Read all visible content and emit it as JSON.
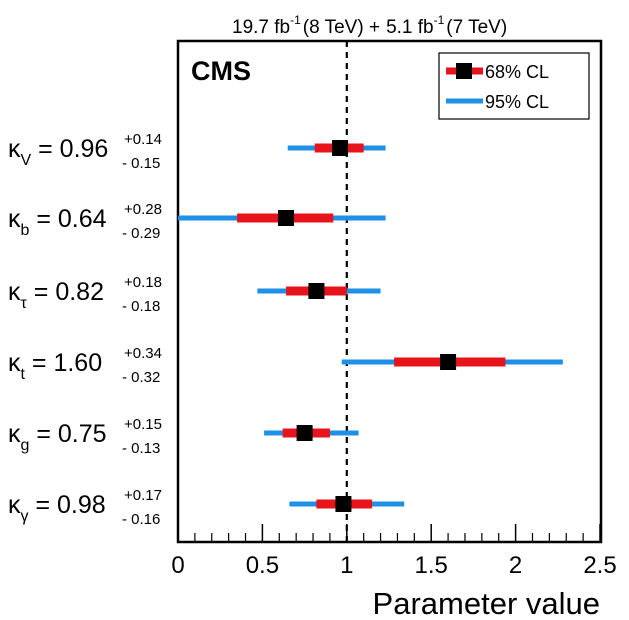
{
  "chart_data": {
    "type": "scatter",
    "header": {
      "lumi1": "19.7 fb",
      "lumi1_exp": "-1",
      "energy1": "(8 TeV) +",
      "lumi2": "5.1 fb",
      "lumi2_exp": "-1",
      "energy2": "(7 TeV)"
    },
    "experiment": "CMS",
    "xlabel": "Parameter value",
    "xlim": [
      0,
      2.5
    ],
    "x_ticks": [
      "0",
      "0.5",
      "1",
      "1.5",
      "2",
      "2.5"
    ],
    "reference_line": 1,
    "legend": {
      "placement": "top-right",
      "items": [
        {
          "label": "68% CL",
          "color": "#e8141b"
        },
        {
          "label": "95% CL",
          "color": "#1e90e6"
        }
      ]
    },
    "colors": {
      "cl68": "#e8141b",
      "cl95": "#1e90e6",
      "marker": "#000000"
    },
    "parameters": [
      {
        "sym": "κ",
        "sub": "V",
        "eq": " = 0.96",
        "up": "+0.14",
        "down": "- 0.15",
        "value": 0.96,
        "cl68": [
          0.81,
          1.1
        ],
        "cl95": [
          0.65,
          1.23
        ]
      },
      {
        "sym": "κ",
        "sub": "b",
        "eq": " = 0.64",
        "up": "+0.28",
        "down": "- 0.29",
        "value": 0.64,
        "cl68": [
          0.35,
          0.92
        ],
        "cl95": [
          0.0,
          1.23
        ]
      },
      {
        "sym": "κ",
        "sub": "τ",
        "eq": " = 0.82",
        "up": "+0.18",
        "down": "- 0.18",
        "value": 0.82,
        "cl68": [
          0.64,
          1.0
        ],
        "cl95": [
          0.47,
          1.2
        ]
      },
      {
        "sym": "κ",
        "sub": "t",
        "eq": " = 1.60",
        "up": "+0.34",
        "down": "- 0.32",
        "value": 1.6,
        "cl68": [
          1.28,
          1.94
        ],
        "cl95": [
          0.97,
          2.28
        ]
      },
      {
        "sym": "κ",
        "sub": "g",
        "eq": " = 0.75",
        "up": "+0.15",
        "down": "- 0.13",
        "value": 0.75,
        "cl68": [
          0.62,
          0.9
        ],
        "cl95": [
          0.51,
          1.07
        ]
      },
      {
        "sym": "κ",
        "sub": "γ",
        "eq": " = 0.98",
        "up": "+0.17",
        "down": "- 0.16",
        "value": 0.98,
        "cl68": [
          0.82,
          1.15
        ],
        "cl95": [
          0.66,
          1.34
        ]
      }
    ]
  }
}
